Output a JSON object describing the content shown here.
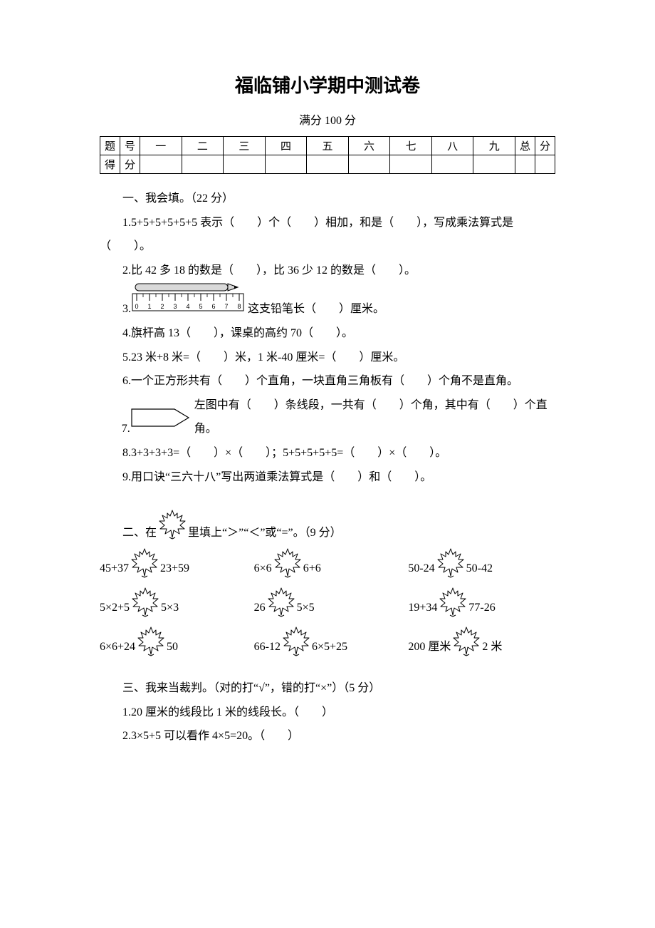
{
  "title": "福临铺小学期中测试卷",
  "subtitle": "满分 100 分",
  "scoreTable": {
    "row1": {
      "c0a": "题",
      "c0b": "号",
      "c1": "一",
      "c2": "二",
      "c3": "三",
      "c4": "四",
      "c5": "五",
      "c6": "六",
      "c7": "七",
      "c8": "八",
      "c9": "九",
      "c10a": "总",
      "c10b": "分"
    },
    "row2": {
      "c0a": "得",
      "c0b": "分"
    }
  },
  "sec1": {
    "heading": "一、我会填。（22 分）",
    "q1": "1.5+5+5+5+5+5 表示（　　）个（　　）相加，和是（　　），写成乘法算式是（　　）。",
    "q2": "2.比 42 多 18 的数是（　　），比 36 少 12 的数是（　　）。",
    "q3_num": "3.",
    "q3_tail": "这支铅笔长（　　）厘米。",
    "q4": "4.旗杆高 13（　　），课桌的高约 70（　　）。",
    "q5": "5.23 米+8 米=（　　）米，1 米-40 厘米=（　　）厘米。",
    "q6": "6.一个正方形共有（　　）个直角，一块直角三角板有（　　）个角不是直角。",
    "q7_num": "7.",
    "q7_tail": "左图中有（　　）条线段，一共有（　　）个角，其中有（　　）个直角。",
    "q8": "8.3+3+3+3=（　　）×（　　）；5+5+5+5+5=（　　）×（　　）。",
    "q9": "9.用口诀“三六十八”写出两道乘法算式是（　　）和（　　）。"
  },
  "ruler": {
    "ticks": [
      "0",
      "1",
      "2",
      "3",
      "4",
      "5",
      "6",
      "7",
      "8"
    ]
  },
  "sec2": {
    "head_a": "二、在",
    "head_b": "里填上“＞”“＜”或“=”。（9 分）",
    "items": [
      {
        "l": "45+37",
        "r": "23+59"
      },
      {
        "l": "6×6",
        "r": "6+6"
      },
      {
        "l": "50-24",
        "r": "50-42"
      },
      {
        "l": "5×2+5",
        "r": "5×3"
      },
      {
        "l": "26",
        "r": "5×5"
      },
      {
        "l": "19+34",
        "r": "77-26"
      },
      {
        "l": "6×6+24",
        "r": "50"
      },
      {
        "l": "66-12",
        "r": "6×5+25"
      },
      {
        "l": "200 厘米",
        "r": "2 米"
      }
    ]
  },
  "sec3": {
    "heading": "三、我来当裁判。（对的打“√”，错的打“×”）（5 分）",
    "q1": "1.20 厘米的线段比 1 米的线段长。（　　）",
    "q2": "2.3×5+5 可以看作 4×5=20。（　　）"
  },
  "icons": {
    "leaf_stroke": "#000000",
    "leaf_fill": "#ffffff"
  }
}
